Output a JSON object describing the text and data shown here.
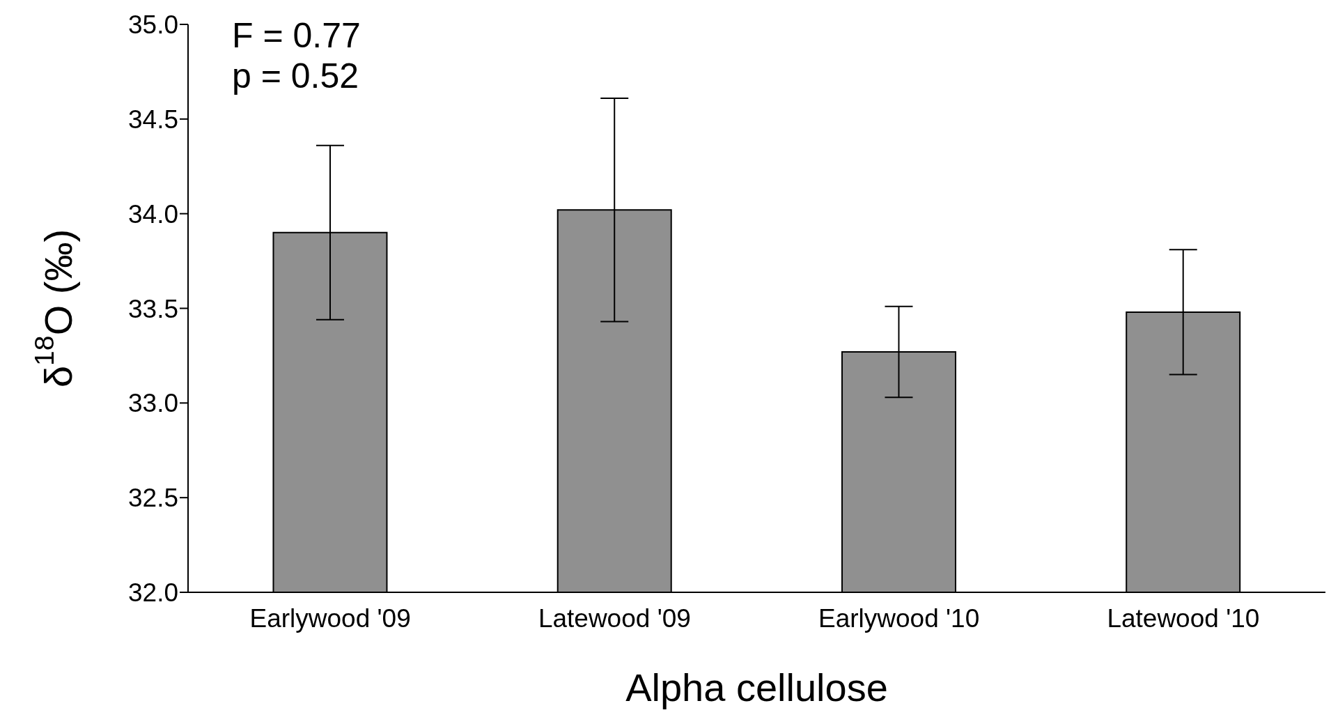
{
  "chart_data": {
    "type": "bar",
    "xlabel": "Alpha cellulose",
    "ylabel": "δ$^{18}$O (‰)",
    "categories": [
      "Earlywood '09",
      "Latewood '09",
      "Earlywood '10",
      "Latewood '10"
    ],
    "values": [
      33.9,
      34.02,
      33.27,
      33.48
    ],
    "errors": [
      0.46,
      0.59,
      0.24,
      0.33
    ],
    "color": "#909090",
    "ylim": [
      32,
      35
    ],
    "yticks": [
      {
        "value": 32,
        "label": "32.0"
      },
      {
        "value": 32.5,
        "label": "32.5"
      },
      {
        "value": 33,
        "label": "33.0"
      },
      {
        "value": 33.5,
        "label": "33.5"
      },
      {
        "value": 34,
        "label": "34.0"
      },
      {
        "value": 34.5,
        "label": "34.5"
      },
      {
        "value": 35,
        "label": "35.0"
      }
    ],
    "annotations": [
      "F = 0.77",
      "p = 0.52"
    ]
  }
}
